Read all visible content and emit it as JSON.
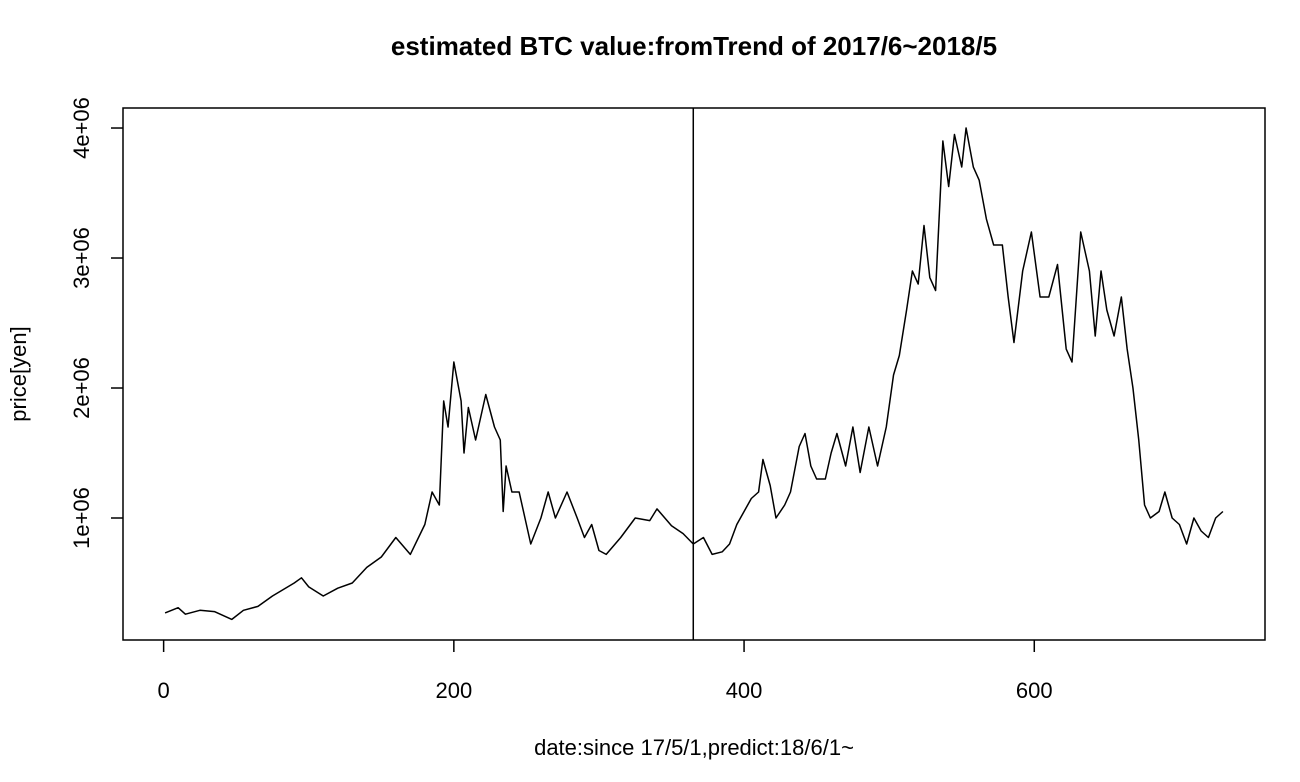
{
  "chart_data": {
    "type": "line",
    "title": "estimated BTC value:fromTrend of 2017/6~2018/5",
    "x_label": "date:since 17/5/1,predict:18/6/1~",
    "y_label": "price[yen]",
    "color": "#000000",
    "vline": 365,
    "xlim": [
      -28,
      759
    ],
    "ylim": [
      61500,
      4154000
    ],
    "xticks": [
      0,
      200,
      400,
      600
    ],
    "yticks": [
      {
        "value": 1000000,
        "label": "1e+06"
      },
      {
        "value": 2000000,
        "label": "2e+06"
      },
      {
        "value": 3000000,
        "label": "3e+06"
      },
      {
        "value": 4000000,
        "label": "4e+06"
      }
    ],
    "x": [
      1,
      10,
      15,
      25,
      35,
      47,
      55,
      65,
      75,
      90,
      95,
      100,
      110,
      120,
      130,
      140,
      150,
      160,
      170,
      180,
      185,
      190,
      193,
      196,
      200,
      205,
      207,
      210,
      215,
      222,
      228,
      232,
      234,
      236,
      240,
      245,
      250,
      253,
      260,
      265,
      270,
      278,
      285,
      290,
      295,
      300,
      305,
      315,
      325,
      335,
      340,
      350,
      358,
      365,
      372,
      378,
      385,
      390,
      395,
      400,
      405,
      410,
      413,
      418,
      422,
      428,
      432,
      438,
      442,
      446,
      450,
      456,
      460,
      464,
      470,
      475,
      480,
      486,
      492,
      498,
      503,
      507,
      512,
      516,
      520,
      524,
      528,
      532,
      537,
      541,
      545,
      550,
      553,
      558,
      562,
      567,
      572,
      578,
      582,
      586,
      592,
      598,
      604,
      610,
      616,
      622,
      626,
      632,
      638,
      642,
      646,
      650,
      655,
      660,
      664,
      668,
      672,
      676,
      680,
      686,
      690,
      695,
      700,
      705,
      710,
      715,
      720,
      725,
      730
    ],
    "values": [
      270000,
      310000,
      260000,
      290000,
      280000,
      220000,
      290000,
      320000,
      400000,
      500000,
      540000,
      470000,
      400000,
      460000,
      500000,
      620000,
      700000,
      850000,
      720000,
      950000,
      1200000,
      1100000,
      1900000,
      1700000,
      2200000,
      1900000,
      1500000,
      1850000,
      1600000,
      1950000,
      1700000,
      1600000,
      1050000,
      1400000,
      1200000,
      1200000,
      950000,
      800000,
      1000000,
      1200000,
      1000000,
      1200000,
      1000000,
      850000,
      950000,
      750000,
      720000,
      850000,
      1000000,
      980000,
      1070000,
      940000,
      880000,
      800000,
      850000,
      720000,
      740000,
      800000,
      950000,
      1050000,
      1150000,
      1200000,
      1450000,
      1250000,
      1000000,
      1100000,
      1200000,
      1550000,
      1650000,
      1400000,
      1300000,
      1300000,
      1500000,
      1650000,
      1400000,
      1700000,
      1350000,
      1700000,
      1400000,
      1700000,
      2100000,
      2250000,
      2600000,
      2900000,
      2800000,
      3250000,
      2850000,
      2750000,
      3900000,
      3550000,
      3950000,
      3700000,
      4000000,
      3700000,
      3600000,
      3300000,
      3100000,
      3100000,
      2700000,
      2350000,
      2900000,
      3200000,
      2700000,
      2700000,
      2950000,
      2300000,
      2200000,
      3200000,
      2900000,
      2400000,
      2900000,
      2600000,
      2400000,
      2700000,
      2300000,
      2000000,
      1600000,
      1100000,
      1000000,
      1050000,
      1200000,
      1000000,
      950000,
      800000,
      1000000,
      900000,
      850000,
      1000000,
      1050000
    ]
  }
}
